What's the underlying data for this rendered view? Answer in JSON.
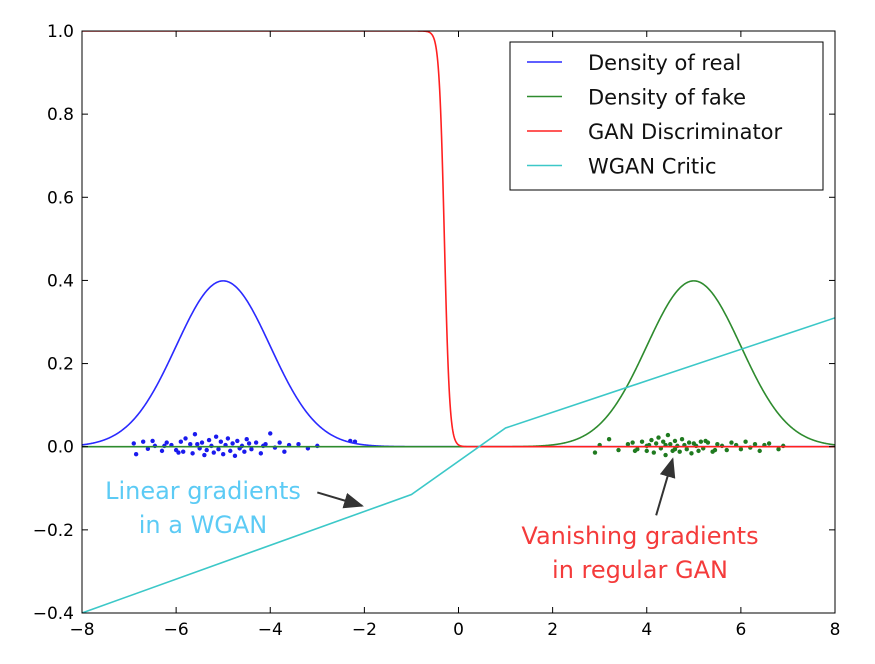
{
  "chart_data": {
    "type": "line",
    "xlim": [
      -8,
      8
    ],
    "ylim": [
      -0.4,
      1.0
    ],
    "xticks": [
      -8,
      -6,
      -4,
      -2,
      0,
      2,
      4,
      6,
      8
    ],
    "xtick_labels": [
      "−8",
      "−6",
      "−4",
      "−2",
      "0",
      "2",
      "4",
      "6",
      "8"
    ],
    "yticks": [
      -0.4,
      -0.2,
      0.0,
      0.2,
      0.4,
      0.6,
      0.8,
      1.0
    ],
    "ytick_labels": [
      "−0.4",
      "−0.2",
      "0.0",
      "0.2",
      "0.4",
      "0.6",
      "0.8",
      "1.0"
    ],
    "grid": false,
    "legend_placement": "top-right",
    "series": [
      {
        "name": "Density of real",
        "color": "#2a2aff",
        "kind": "gaussian",
        "mean": -5,
        "std": 1
      },
      {
        "name": "Density of fake",
        "color": "#2e8b2e",
        "kind": "gaussian",
        "mean": 5,
        "std": 1
      },
      {
        "name": "GAN Discriminator",
        "color": "#ff2020",
        "kind": "sigmoid",
        "center": -0.3,
        "steepness": 18
      },
      {
        "name": "WGAN Critic",
        "color": "#3cc8c8",
        "kind": "polyline",
        "x": [
          -8,
          -1,
          1,
          8
        ],
        "y": [
          -0.4,
          -0.115,
          0.045,
          0.31
        ]
      }
    ],
    "scatter": [
      {
        "color": "#1a1aee",
        "x": [
          -6.9,
          -6.85,
          -6.7,
          -6.6,
          -6.5,
          -6.45,
          -6.3,
          -6.2,
          -6.1,
          -6.0,
          -5.9,
          -5.85,
          -5.8,
          -5.7,
          -5.65,
          -5.6,
          -5.5,
          -5.45,
          -5.4,
          -5.3,
          -5.25,
          -5.2,
          -5.15,
          -5.1,
          -5.05,
          -5.0,
          -4.95,
          -4.9,
          -4.85,
          -4.8,
          -4.75,
          -4.7,
          -4.6,
          -4.55,
          -4.5,
          -4.4,
          -4.3,
          -4.2,
          -4.1,
          -4.0,
          -3.9,
          -3.8,
          -3.7,
          -3.6,
          -3.4,
          -3.2,
          -3.0,
          -2.3,
          -2.2,
          -5.35,
          -5.55,
          -4.65,
          -4.45,
          -6.25,
          -5.95,
          -4.15
        ],
        "y": [
          0.008,
          -0.018,
          0.012,
          -0.005,
          0.014,
          0.002,
          -0.01,
          0.01,
          0.004,
          -0.008,
          0.012,
          -0.012,
          0.02,
          0.006,
          -0.016,
          0.03,
          -0.004,
          0.01,
          -0.02,
          0.016,
          0.002,
          -0.014,
          0.024,
          -0.006,
          0.012,
          -0.018,
          0.004,
          0.02,
          -0.01,
          0.008,
          -0.022,
          0.014,
          0.002,
          -0.012,
          0.018,
          -0.006,
          0.01,
          -0.016,
          0.006,
          0.032,
          -0.002,
          0.01,
          -0.012,
          0.004,
          0.006,
          -0.004,
          0.002,
          0.014,
          0.012,
          -0.008,
          0.006,
          -0.004,
          0.008,
          0.002,
          -0.014,
          0.002
        ]
      },
      {
        "color": "#1f7a1f",
        "x": [
          2.9,
          3.0,
          3.2,
          3.4,
          3.6,
          3.7,
          3.8,
          3.9,
          4.0,
          4.05,
          4.1,
          4.15,
          4.2,
          4.25,
          4.3,
          4.35,
          4.4,
          4.45,
          4.5,
          4.55,
          4.6,
          4.65,
          4.7,
          4.75,
          4.8,
          4.85,
          4.9,
          4.95,
          5.0,
          5.05,
          5.1,
          5.15,
          5.2,
          5.3,
          5.4,
          5.5,
          5.6,
          5.7,
          5.8,
          5.9,
          6.0,
          6.1,
          6.2,
          6.3,
          6.4,
          6.5,
          6.6,
          6.8,
          6.9,
          4.4,
          4.6,
          5.25,
          5.45,
          4.0,
          3.75
        ],
        "y": [
          -0.014,
          0.004,
          0.018,
          -0.008,
          0.006,
          0.01,
          -0.006,
          0.012,
          -0.01,
          0.004,
          0.016,
          -0.014,
          0.008,
          0.022,
          -0.004,
          0.012,
          -0.02,
          0.028,
          0.006,
          -0.01,
          0.014,
          0.002,
          -0.012,
          0.018,
          0.004,
          -0.006,
          0.01,
          -0.016,
          0.008,
          0.002,
          -0.01,
          0.012,
          -0.004,
          0.01,
          -0.012,
          0.006,
          0.002,
          -0.008,
          0.01,
          0.004,
          -0.006,
          0.012,
          -0.002,
          0.006,
          -0.01,
          0.004,
          0.008,
          -0.006,
          0.002,
          0.004,
          -0.006,
          0.014,
          -0.008,
          0.002,
          -0.01
        ]
      }
    ],
    "annotations": [
      {
        "lines": [
          "Linear gradients",
          "in a WGAN"
        ],
        "color": "#5ccbf5",
        "arrow_from": [
          -3.0,
          -0.11
        ],
        "arrow_to": [
          -2.05,
          -0.142
        ]
      },
      {
        "lines": [
          "Vanishing gradients",
          "in regular GAN"
        ],
        "color": "#f43b3b",
        "arrow_from": [
          4.2,
          -0.165
        ],
        "arrow_to": [
          4.55,
          -0.03
        ]
      }
    ]
  }
}
